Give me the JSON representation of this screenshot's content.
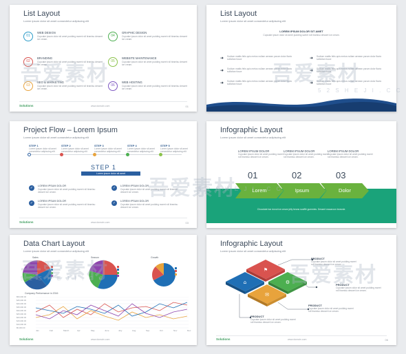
{
  "common": {
    "subtitle": "Lorem ipsum dolor sit amet consectetur adipiscing elit",
    "logo": "Solutions",
    "footer": "www.domain.com",
    "body_text": "Cupcake ipsum dolor sit amet pudding sweet roll tiramisu dessert ice cream."
  },
  "slide1": {
    "title": "List Layout",
    "page": "01",
    "items": [
      {
        "num": "01",
        "label": "WEB DESIGN",
        "color": "#2b9bc8"
      },
      {
        "num": "02",
        "label": "BRANDING",
        "color": "#d9534f"
      },
      {
        "num": "03",
        "label": "SEO & MARKETING",
        "color": "#e8a33c"
      },
      {
        "num": "04",
        "label": "GRAPHIC DESIGN",
        "color": "#4caf50"
      },
      {
        "num": "05",
        "label": "WEBSITE MAINTENANCE",
        "color": "#8bc34a"
      },
      {
        "num": "06",
        "label": "WEB HOSTING",
        "color": "#7e57c2"
      }
    ]
  },
  "slide2": {
    "title": "List Layout",
    "heading": "LOREM IPSUM DOLOR SIT AMET",
    "bullet_text": "Sodium mattis felis quis metus nullam aenean parum dolor flavio sollicitan fusce",
    "wave_color": "#1f4e8c"
  },
  "slide3": {
    "title": "Project Flow – Lorem Ipsum",
    "page": "03",
    "steps": [
      {
        "label": "STEP 1",
        "color": "#2b5fa0"
      },
      {
        "label": "STEP 2",
        "color": "#d9534f"
      },
      {
        "label": "STEP 3",
        "color": "#e8a33c"
      },
      {
        "label": "STEP 4",
        "color": "#4caf50"
      },
      {
        "label": "STEP 5",
        "color": "#8bc34a"
      }
    ],
    "big_step": "STEP 1",
    "banner_text": "Lorem ipsum dolor sit amet",
    "check_label": "LOREM IPSUM DOLOR"
  },
  "slide4": {
    "title": "Infographic Layout",
    "column_heading": "LOREM IPSUM DOLOR",
    "numbers": [
      "01",
      "02",
      "03"
    ],
    "chevrons": [
      "Lorem",
      "Ipsum",
      "Dolor"
    ],
    "band_color": "#1aa37a",
    "band_text": "Chocolate bar donut ice cream jelly beans soufflé gummies. Dessert macaroon brownie."
  },
  "slide5": {
    "title": "Data Chart Layout",
    "pies": [
      "Sales",
      "Season",
      "Growth"
    ],
    "line_title": "Company Performance in 2016",
    "months": [
      "Jan",
      "Feb",
      "March",
      "Apr",
      "May",
      "June",
      "July",
      "Aug",
      "Sep",
      "Oct",
      "Nov",
      "Dec"
    ],
    "y_ticks": [
      "$50,000.00",
      "$45,000.00",
      "$40,000.00",
      "$35,000.00",
      "$30,000.00",
      "$25,000.00",
      "$20,000.00",
      "$15,000.00",
      "$10,000.00",
      "$5,000.00"
    ]
  },
  "slide6": {
    "title": "Infographic Layout",
    "product": "PRODUCT",
    "page": "06"
  },
  "watermark": {
    "main": "吾爱素材",
    "url": "5 2 S H E J I . C C"
  }
}
